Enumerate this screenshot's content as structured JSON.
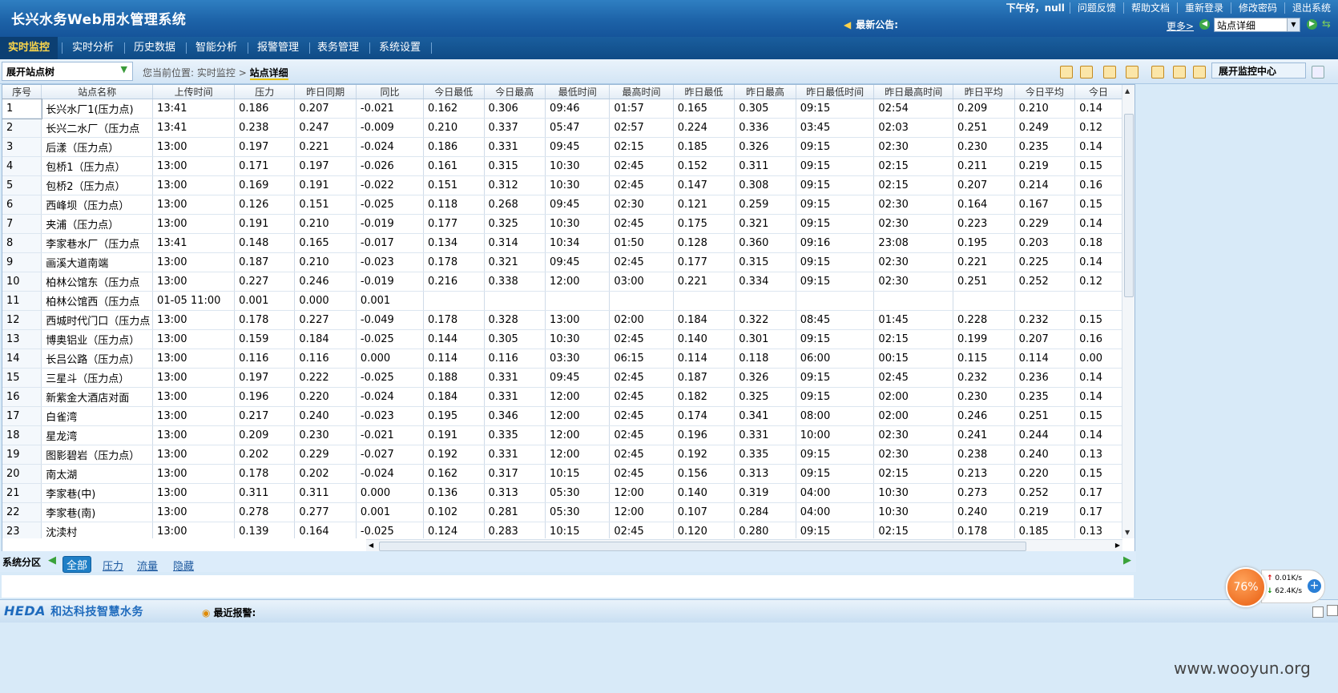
{
  "header": {
    "title": "长兴水务Web用水管理系统",
    "greeting": "下午好，null",
    "links": [
      "问题反馈",
      "帮助文档",
      "重新登录",
      "修改密码",
      "退出系统"
    ],
    "notice_label": "最新公告:",
    "more_label": "更多>",
    "site_select_value": "站点详细"
  },
  "nav": {
    "items": [
      "实时监控",
      "实时分析",
      "历史数据",
      "智能分析",
      "报警管理",
      "表务管理",
      "系统设置"
    ],
    "active": "实时监控"
  },
  "toolbar": {
    "tree_label": "展开站点树",
    "breadcrumb_prefix": "您当前位置:",
    "breadcrumb_parent": "实时监控",
    "breadcrumb_sep": ">",
    "breadcrumb_current": "站点详细",
    "monitor_button": "展开监控中心"
  },
  "table": {
    "columns": [
      "序号",
      "站点名称",
      "上传时间",
      "压力",
      "昨日同期",
      "同比",
      "今日最低",
      "今日最高",
      "最低时间",
      "最高时间",
      "昨日最低",
      "昨日最高",
      "昨日最低时间",
      "昨日最高时间",
      "昨日平均",
      "今日平均",
      "今日"
    ],
    "rows": [
      [
        "1",
        "长兴水厂1(压力点)",
        "13:41",
        "0.186",
        "0.207",
        "-0.021",
        "0.162",
        "0.306",
        "09:46",
        "01:57",
        "0.165",
        "0.305",
        "09:15",
        "02:54",
        "0.209",
        "0.210",
        "0.14"
      ],
      [
        "2",
        "长兴二水厂（压力点",
        "13:41",
        "0.238",
        "0.247",
        "-0.009",
        "0.210",
        "0.337",
        "05:47",
        "02:57",
        "0.224",
        "0.336",
        "03:45",
        "02:03",
        "0.251",
        "0.249",
        "0.12"
      ],
      [
        "3",
        "后漾（压力点）",
        "13:00",
        "0.197",
        "0.221",
        "-0.024",
        "0.186",
        "0.331",
        "09:45",
        "02:15",
        "0.185",
        "0.326",
        "09:15",
        "02:30",
        "0.230",
        "0.235",
        "0.14"
      ],
      [
        "4",
        "包桥1（压力点）",
        "13:00",
        "0.171",
        "0.197",
        "-0.026",
        "0.161",
        "0.315",
        "10:30",
        "02:45",
        "0.152",
        "0.311",
        "09:15",
        "02:15",
        "0.211",
        "0.219",
        "0.15"
      ],
      [
        "5",
        "包桥2（压力点）",
        "13:00",
        "0.169",
        "0.191",
        "-0.022",
        "0.151",
        "0.312",
        "10:30",
        "02:45",
        "0.147",
        "0.308",
        "09:15",
        "02:15",
        "0.207",
        "0.214",
        "0.16"
      ],
      [
        "6",
        "西峰坝（压力点）",
        "13:00",
        "0.126",
        "0.151",
        "-0.025",
        "0.118",
        "0.268",
        "09:45",
        "02:30",
        "0.121",
        "0.259",
        "09:15",
        "02:30",
        "0.164",
        "0.167",
        "0.15"
      ],
      [
        "7",
        "夹浦（压力点）",
        "13:00",
        "0.191",
        "0.210",
        "-0.019",
        "0.177",
        "0.325",
        "10:30",
        "02:45",
        "0.175",
        "0.321",
        "09:15",
        "02:30",
        "0.223",
        "0.229",
        "0.14"
      ],
      [
        "8",
        "李家巷水厂（压力点",
        "13:41",
        "0.148",
        "0.165",
        "-0.017",
        "0.134",
        "0.314",
        "10:34",
        "01:50",
        "0.128",
        "0.360",
        "09:16",
        "23:08",
        "0.195",
        "0.203",
        "0.18"
      ],
      [
        "9",
        "画溪大道南端",
        "13:00",
        "0.187",
        "0.210",
        "-0.023",
        "0.178",
        "0.321",
        "09:45",
        "02:45",
        "0.177",
        "0.315",
        "09:15",
        "02:30",
        "0.221",
        "0.225",
        "0.14"
      ],
      [
        "10",
        "柏林公馆东（压力点",
        "13:00",
        "0.227",
        "0.246",
        "-0.019",
        "0.216",
        "0.338",
        "12:00",
        "03:00",
        "0.221",
        "0.334",
        "09:15",
        "02:30",
        "0.251",
        "0.252",
        "0.12"
      ],
      [
        "11",
        "柏林公馆西（压力点",
        "01-05 11:00",
        "0.001",
        "0.000",
        "0.001",
        "",
        "",
        "",
        "",
        "",
        "",
        "",
        "",
        "",
        "",
        ""
      ],
      [
        "12",
        "西城时代门口（压力点",
        "13:00",
        "0.178",
        "0.227",
        "-0.049",
        "0.178",
        "0.328",
        "13:00",
        "02:00",
        "0.184",
        "0.322",
        "08:45",
        "01:45",
        "0.228",
        "0.232",
        "0.15"
      ],
      [
        "13",
        "博奥铝业（压力点）",
        "13:00",
        "0.159",
        "0.184",
        "-0.025",
        "0.144",
        "0.305",
        "10:30",
        "02:45",
        "0.140",
        "0.301",
        "09:15",
        "02:15",
        "0.199",
        "0.207",
        "0.16"
      ],
      [
        "14",
        "长吕公路（压力点）",
        "13:00",
        "0.116",
        "0.116",
        "0.000",
        "0.114",
        "0.116",
        "03:30",
        "06:15",
        "0.114",
        "0.118",
        "06:00",
        "00:15",
        "0.115",
        "0.114",
        "0.00"
      ],
      [
        "15",
        "三星斗（压力点）",
        "13:00",
        "0.197",
        "0.222",
        "-0.025",
        "0.188",
        "0.331",
        "09:45",
        "02:45",
        "0.187",
        "0.326",
        "09:15",
        "02:45",
        "0.232",
        "0.236",
        "0.14"
      ],
      [
        "16",
        "新紫金大酒店对面",
        "13:00",
        "0.196",
        "0.220",
        "-0.024",
        "0.184",
        "0.331",
        "12:00",
        "02:45",
        "0.182",
        "0.325",
        "09:15",
        "02:00",
        "0.230",
        "0.235",
        "0.14"
      ],
      [
        "17",
        "白雀湾",
        "13:00",
        "0.217",
        "0.240",
        "-0.023",
        "0.195",
        "0.346",
        "12:00",
        "02:45",
        "0.174",
        "0.341",
        "08:00",
        "02:00",
        "0.246",
        "0.251",
        "0.15"
      ],
      [
        "18",
        "星龙湾",
        "13:00",
        "0.209",
        "0.230",
        "-0.021",
        "0.191",
        "0.335",
        "12:00",
        "02:45",
        "0.196",
        "0.331",
        "10:00",
        "02:30",
        "0.241",
        "0.244",
        "0.14"
      ],
      [
        "19",
        "图影碧岩（压力点）",
        "13:00",
        "0.202",
        "0.229",
        "-0.027",
        "0.192",
        "0.331",
        "12:00",
        "02:45",
        "0.192",
        "0.335",
        "09:15",
        "02:30",
        "0.238",
        "0.240",
        "0.13"
      ],
      [
        "20",
        "南太湖",
        "13:00",
        "0.178",
        "0.202",
        "-0.024",
        "0.162",
        "0.317",
        "10:15",
        "02:45",
        "0.156",
        "0.313",
        "09:15",
        "02:15",
        "0.213",
        "0.220",
        "0.15"
      ],
      [
        "21",
        "李家巷(中)",
        "13:00",
        "0.311",
        "0.311",
        "0.000",
        "0.136",
        "0.313",
        "05:30",
        "12:00",
        "0.140",
        "0.319",
        "04:00",
        "10:30",
        "0.273",
        "0.252",
        "0.17"
      ],
      [
        "22",
        "李家巷(南)",
        "13:00",
        "0.278",
        "0.277",
        "0.001",
        "0.102",
        "0.281",
        "05:30",
        "12:00",
        "0.107",
        "0.284",
        "04:00",
        "10:30",
        "0.240",
        "0.219",
        "0.17"
      ],
      [
        "23",
        "沈渎村",
        "13:00",
        "0.139",
        "0.164",
        "-0.025",
        "0.124",
        "0.283",
        "10:15",
        "02:45",
        "0.120",
        "0.280",
        "09:15",
        "02:15",
        "0.178",
        "0.185",
        "0.13"
      ]
    ]
  },
  "zones": {
    "label": "系统分区",
    "tabs": [
      "全部",
      "压力",
      "流量",
      "隐藏"
    ],
    "active": "全部"
  },
  "footer": {
    "logo_en": "HEDA",
    "logo_cn": "和达科技智慧水务",
    "alarm_label": "最近报警:"
  },
  "widget": {
    "percent": "76%",
    "up_speed": "0.01K/s",
    "down_speed": "62.4K/s"
  },
  "watermark": "www.wooyun.org"
}
